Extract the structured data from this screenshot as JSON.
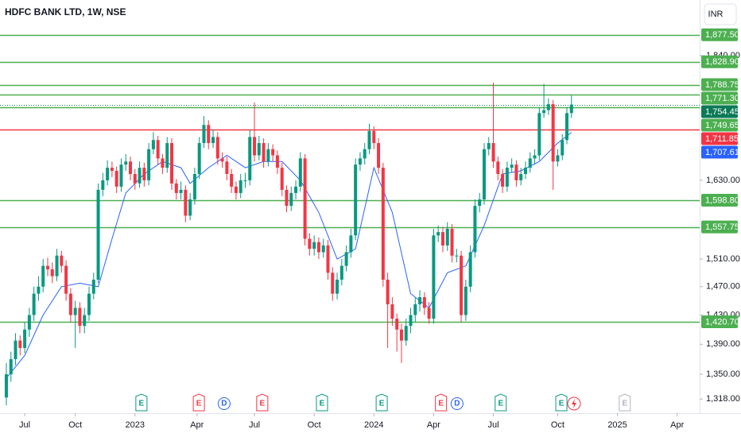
{
  "chart_data": {
    "type": "candlestick",
    "title": "HDFC BANK LTD, 1W, NSE",
    "currency": "INR",
    "log_scale": true,
    "up_color": "#089981",
    "down_color": "#f23645",
    "xlim": [
      -1.38,
      150.9
    ],
    "ylim": [
      1300,
      1942
    ],
    "yticks": [
      {
        "value": 1318,
        "label": "1,318.00"
      },
      {
        "value": 1350,
        "label": "1,350.00"
      },
      {
        "value": 1390,
        "label": "1,390.00"
      },
      {
        "value": 1430,
        "label": "1,430.00"
      },
      {
        "value": 1470,
        "label": "1,470.00"
      },
      {
        "value": 1510,
        "label": "1,510.00"
      },
      {
        "value": 1630,
        "label": "1,630.00"
      },
      {
        "value": 1840,
        "label": "1,840.00"
      }
    ],
    "xticks": [
      {
        "value": 4,
        "label": "Jul"
      },
      {
        "value": 15,
        "label": "Oct"
      },
      {
        "value": 28,
        "label": "2023"
      },
      {
        "value": 41.5,
        "label": "Apr"
      },
      {
        "value": 54,
        "label": "Jul"
      },
      {
        "value": 67,
        "label": "Oct"
      },
      {
        "value": 80,
        "label": "2024"
      },
      {
        "value": 93,
        "label": "Apr"
      },
      {
        "value": 106,
        "label": "Jul"
      },
      {
        "value": 120,
        "label": "Oct"
      },
      {
        "value": 133,
        "label": "2025"
      },
      {
        "value": 146,
        "label": "Apr"
      }
    ],
    "candles": [
      [
        1320,
        1365,
        1310,
        1350
      ],
      [
        1350,
        1380,
        1340,
        1370
      ],
      [
        1370,
        1405,
        1362,
        1395
      ],
      [
        1395,
        1402,
        1375,
        1385
      ],
      [
        1385,
        1420,
        1378,
        1410
      ],
      [
        1410,
        1440,
        1400,
        1430
      ],
      [
        1430,
        1470,
        1422,
        1460
      ],
      [
        1460,
        1485,
        1450,
        1470
      ],
      [
        1470,
        1510,
        1462,
        1500
      ],
      [
        1500,
        1512,
        1485,
        1495
      ],
      [
        1495,
        1505,
        1475,
        1485
      ],
      [
        1485,
        1525,
        1478,
        1515
      ],
      [
        1515,
        1522,
        1490,
        1500
      ],
      [
        1500,
        1508,
        1450,
        1460
      ],
      [
        1460,
        1468,
        1420,
        1430
      ],
      [
        1430,
        1450,
        1385,
        1440
      ],
      [
        1440,
        1448,
        1405,
        1415
      ],
      [
        1415,
        1440,
        1405,
        1430
      ],
      [
        1430,
        1470,
        1422,
        1460
      ],
      [
        1460,
        1490,
        1452,
        1480
      ],
      [
        1480,
        1625,
        1475,
        1615
      ],
      [
        1615,
        1642,
        1605,
        1630
      ],
      [
        1630,
        1662,
        1622,
        1650
      ],
      [
        1650,
        1660,
        1635,
        1645
      ],
      [
        1645,
        1652,
        1610,
        1620
      ],
      [
        1620,
        1665,
        1612,
        1655
      ],
      [
        1655,
        1672,
        1645,
        1660
      ],
      [
        1660,
        1668,
        1630,
        1640
      ],
      [
        1640,
        1648,
        1615,
        1625
      ],
      [
        1625,
        1660,
        1618,
        1650
      ],
      [
        1650,
        1658,
        1620,
        1630
      ],
      [
        1630,
        1690,
        1622,
        1680
      ],
      [
        1680,
        1708,
        1672,
        1695
      ],
      [
        1695,
        1702,
        1655,
        1665
      ],
      [
        1665,
        1672,
        1640,
        1650
      ],
      [
        1650,
        1700,
        1642,
        1690
      ],
      [
        1690,
        1698,
        1615,
        1625
      ],
      [
        1625,
        1632,
        1600,
        1610
      ],
      [
        1610,
        1628,
        1600,
        1615
      ],
      [
        1615,
        1622,
        1565,
        1575
      ],
      [
        1575,
        1610,
        1568,
        1600
      ],
      [
        1600,
        1650,
        1592,
        1640
      ],
      [
        1640,
        1700,
        1632,
        1690
      ],
      [
        1690,
        1735,
        1682,
        1720
      ],
      [
        1720,
        1728,
        1680,
        1690
      ],
      [
        1690,
        1712,
        1682,
        1700
      ],
      [
        1700,
        1708,
        1655,
        1665
      ],
      [
        1665,
        1675,
        1650,
        1660
      ],
      [
        1660,
        1668,
        1630,
        1640
      ],
      [
        1640,
        1648,
        1610,
        1620
      ],
      [
        1620,
        1628,
        1600,
        1610
      ],
      [
        1610,
        1640,
        1602,
        1630
      ],
      [
        1630,
        1642,
        1618,
        1630
      ],
      [
        1630,
        1712,
        1622,
        1700
      ],
      [
        1700,
        1758,
        1660,
        1670
      ],
      [
        1670,
        1702,
        1662,
        1690
      ],
      [
        1690,
        1698,
        1650,
        1660
      ],
      [
        1660,
        1690,
        1652,
        1680
      ],
      [
        1680,
        1688,
        1660,
        1670
      ],
      [
        1670,
        1678,
        1640,
        1650
      ],
      [
        1650,
        1658,
        1605,
        1615
      ],
      [
        1615,
        1622,
        1580,
        1590
      ],
      [
        1590,
        1620,
        1582,
        1610
      ],
      [
        1610,
        1630,
        1600,
        1620
      ],
      [
        1620,
        1675,
        1612,
        1665
      ],
      [
        1665,
        1672,
        1530,
        1540
      ],
      [
        1540,
        1548,
        1515,
        1525
      ],
      [
        1525,
        1545,
        1515,
        1535
      ],
      [
        1535,
        1542,
        1510,
        1520
      ],
      [
        1520,
        1540,
        1512,
        1530
      ],
      [
        1530,
        1538,
        1480,
        1490
      ],
      [
        1490,
        1498,
        1450,
        1460
      ],
      [
        1460,
        1490,
        1452,
        1480
      ],
      [
        1480,
        1510,
        1472,
        1500
      ],
      [
        1500,
        1530,
        1492,
        1520
      ],
      [
        1520,
        1555,
        1512,
        1545
      ],
      [
        1545,
        1665,
        1538,
        1655
      ],
      [
        1655,
        1675,
        1645,
        1665
      ],
      [
        1665,
        1690,
        1655,
        1680
      ],
      [
        1680,
        1722,
        1672,
        1710
      ],
      [
        1710,
        1718,
        1680,
        1690
      ],
      [
        1690,
        1698,
        1640,
        1650
      ],
      [
        1650,
        1658,
        1470,
        1480
      ],
      [
        1480,
        1490,
        1385,
        1445
      ],
      [
        1445,
        1455,
        1415,
        1425
      ],
      [
        1425,
        1432,
        1380,
        1410
      ],
      [
        1410,
        1418,
        1365,
        1395
      ],
      [
        1395,
        1425,
        1388,
        1415
      ],
      [
        1415,
        1440,
        1405,
        1430
      ],
      [
        1430,
        1455,
        1420,
        1445
      ],
      [
        1445,
        1465,
        1435,
        1455
      ],
      [
        1455,
        1462,
        1430,
        1440
      ],
      [
        1440,
        1448,
        1418,
        1425
      ],
      [
        1425,
        1555,
        1418,
        1545
      ],
      [
        1545,
        1560,
        1535,
        1550
      ],
      [
        1550,
        1558,
        1520,
        1530
      ],
      [
        1530,
        1565,
        1522,
        1555
      ],
      [
        1555,
        1562,
        1505,
        1515
      ],
      [
        1515,
        1525,
        1505,
        1515
      ],
      [
        1515,
        1522,
        1420,
        1430
      ],
      [
        1430,
        1480,
        1422,
        1470
      ],
      [
        1470,
        1530,
        1462,
        1520
      ],
      [
        1520,
        1600,
        1512,
        1590
      ],
      [
        1590,
        1610,
        1580,
        1600
      ],
      [
        1600,
        1690,
        1592,
        1680
      ],
      [
        1680,
        1700,
        1670,
        1690
      ],
      [
        1690,
        1792,
        1650,
        1660
      ],
      [
        1660,
        1668,
        1630,
        1640
      ],
      [
        1640,
        1648,
        1610,
        1620
      ],
      [
        1620,
        1660,
        1612,
        1650
      ],
      [
        1650,
        1665,
        1642,
        1655
      ],
      [
        1655,
        1662,
        1620,
        1630
      ],
      [
        1630,
        1650,
        1622,
        1640
      ],
      [
        1640,
        1660,
        1632,
        1650
      ],
      [
        1650,
        1675,
        1642,
        1665
      ],
      [
        1665,
        1680,
        1655,
        1670
      ],
      [
        1670,
        1750,
        1662,
        1740
      ],
      [
        1740,
        1790,
        1732,
        1745
      ],
      [
        1745,
        1765,
        1737,
        1755
      ],
      [
        1755,
        1762,
        1615,
        1660
      ],
      [
        1660,
        1680,
        1652,
        1670
      ],
      [
        1670,
        1705,
        1662,
        1695
      ],
      [
        1695,
        1750,
        1688,
        1740
      ],
      [
        1740,
        1770,
        1732,
        1754.45
      ]
    ],
    "ma": {
      "color": "#2962ff",
      "x": [
        0,
        4,
        8,
        12,
        16,
        20,
        23,
        26,
        30,
        34,
        38,
        40,
        44,
        48,
        52,
        56,
        60,
        64,
        68,
        72,
        76,
        80,
        84,
        88,
        92,
        96,
        100,
        104,
        108,
        112,
        116,
        120,
        123
      ],
      "values": [
        1345,
        1375,
        1430,
        1470,
        1475,
        1470,
        1540,
        1610,
        1640,
        1660,
        1650,
        1625,
        1650,
        1670,
        1650,
        1660,
        1660,
        1630,
        1580,
        1510,
        1525,
        1650,
        1580,
        1460,
        1440,
        1490,
        1500,
        1560,
        1640,
        1645,
        1660,
        1690,
        1707.61
      ]
    },
    "levels": [
      {
        "value": 1877.5,
        "label": "1,877.50",
        "color": "#4caf50"
      },
      {
        "value": 1828.9,
        "label": "1,828.90",
        "color": "#4caf50"
      },
      {
        "value": 1788.75,
        "label": "1,788.75",
        "color": "#4caf50"
      },
      {
        "value": 1771.3,
        "label": "1,771.30",
        "color": "#4caf50"
      },
      {
        "value": 1749.65,
        "label": "1,749.65",
        "color": "#4caf50"
      },
      {
        "value": 1711.85,
        "label": "1,711.85",
        "color": "#f23645"
      },
      {
        "value": 1598.8,
        "label": "1,598.80",
        "color": "#4caf50"
      },
      {
        "value": 1557.75,
        "label": "1,557.75",
        "color": "#4caf50"
      },
      {
        "value": 1420.7,
        "label": "1,420.70",
        "color": "#4caf50"
      }
    ],
    "price_tags": [
      {
        "value": 1754.45,
        "label": "1,754.45",
        "color": "#0b7a57",
        "line": "dotted"
      },
      {
        "value": 1707.61,
        "label": "1,707.61",
        "color": "#2962ff",
        "line": "none"
      }
    ],
    "events": [
      {
        "x": 29.4,
        "label": "E",
        "color": "#089981",
        "shape": "flag"
      },
      {
        "x": 41.9,
        "label": "E",
        "color": "#f23645",
        "shape": "flag"
      },
      {
        "x": 47.4,
        "label": "D",
        "color": "#2962ff",
        "shape": "circle"
      },
      {
        "x": 55.7,
        "label": "E",
        "color": "#f23645",
        "shape": "flag"
      },
      {
        "x": 68.7,
        "label": "E",
        "color": "#089981",
        "shape": "flag"
      },
      {
        "x": 81.7,
        "label": "E",
        "color": "#089981",
        "shape": "flag"
      },
      {
        "x": 94.6,
        "label": "E",
        "color": "#f23645",
        "shape": "flag"
      },
      {
        "x": 98.1,
        "label": "D",
        "color": "#2962ff",
        "shape": "circle"
      },
      {
        "x": 107.6,
        "label": "E",
        "color": "#089981",
        "shape": "flag"
      },
      {
        "x": 120.8,
        "label": "E",
        "color": "#089981",
        "shape": "flag"
      },
      {
        "x": 134.6,
        "label": "E",
        "color": "#b2b5be",
        "shape": "flag"
      }
    ]
  }
}
